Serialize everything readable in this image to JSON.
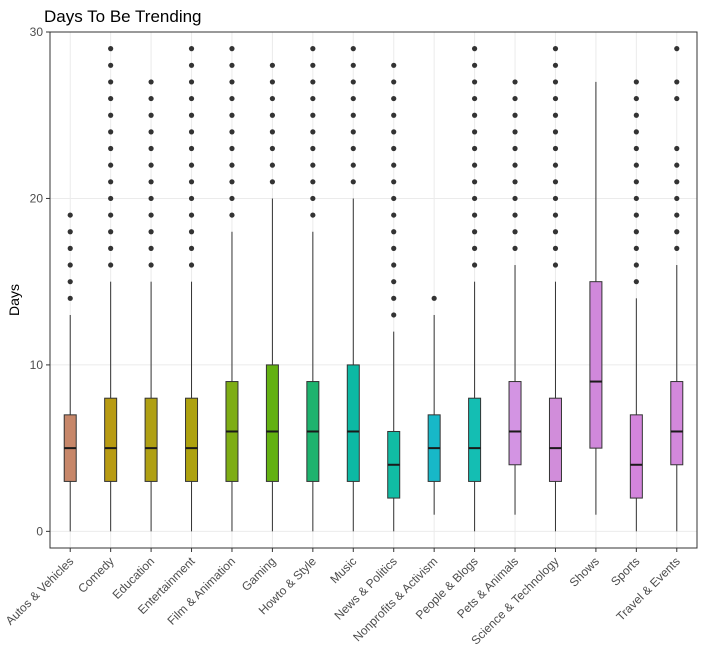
{
  "chart_data": {
    "type": "boxplot",
    "title": "Days To Be Trending",
    "xlabel": "",
    "ylabel": "Days",
    "ylim": [
      -1,
      30
    ],
    "y_ticks": [
      0,
      10,
      20,
      30
    ],
    "grid": true,
    "legend": "none",
    "categories": [
      "Autos & Vehicles",
      "Comedy",
      "Education",
      "Entertainment",
      "Film & Animation",
      "Gaming",
      "Howto & Style",
      "Music",
      "News & Politics",
      "Nonprofits & Activism",
      "People & Blogs",
      "Pets & Animals",
      "Science & Technology",
      "Shows",
      "Sports",
      "Travel & Events"
    ],
    "colors": [
      "#C7876A",
      "#B89B13",
      "#B0A013",
      "#AEA20F",
      "#7EAD14",
      "#63B112",
      "#1EB36E",
      "#0DB9A4",
      "#11BCA4",
      "#17B8C8",
      "#14BEB3",
      "#D394E3",
      "#D18DDA",
      "#D088DB",
      "#D385DC",
      "#D388DC"
    ],
    "boxes": [
      {
        "min": 0,
        "q1": 3,
        "median": 5,
        "q3": 7,
        "max": 13,
        "outliers": [
          14,
          15,
          16,
          17,
          18,
          19
        ]
      },
      {
        "min": 0,
        "q1": 3,
        "median": 5,
        "q3": 8,
        "max": 15,
        "outliers": [
          16,
          17,
          18,
          19,
          20,
          21,
          22,
          23,
          24,
          25,
          26,
          27,
          28,
          29
        ]
      },
      {
        "min": 0,
        "q1": 3,
        "median": 5,
        "q3": 8,
        "max": 15,
        "outliers": [
          16,
          17,
          18,
          19,
          20,
          21,
          22,
          23,
          24,
          25,
          26,
          27
        ]
      },
      {
        "min": 0,
        "q1": 3,
        "median": 5,
        "q3": 8,
        "max": 15,
        "outliers": [
          16,
          17,
          18,
          19,
          20,
          21,
          22,
          23,
          24,
          25,
          26,
          27,
          28,
          29
        ]
      },
      {
        "min": 0,
        "q1": 3,
        "median": 6,
        "q3": 9,
        "max": 18,
        "outliers": [
          19,
          20,
          21,
          22,
          23,
          24,
          25,
          26,
          27,
          28,
          29
        ]
      },
      {
        "min": 0,
        "q1": 3,
        "median": 6,
        "q3": 10,
        "max": 20,
        "outliers": [
          21,
          22,
          23,
          24,
          25,
          26,
          27,
          28
        ]
      },
      {
        "min": 0,
        "q1": 3,
        "median": 6,
        "q3": 9,
        "max": 18,
        "outliers": [
          19,
          20,
          21,
          22,
          23,
          24,
          25,
          26,
          27,
          28,
          29
        ]
      },
      {
        "min": 0,
        "q1": 3,
        "median": 6,
        "q3": 10,
        "max": 20,
        "outliers": [
          21,
          22,
          23,
          24,
          25,
          26,
          27,
          28,
          29
        ]
      },
      {
        "min": 0,
        "q1": 2,
        "median": 4,
        "q3": 6,
        "max": 12,
        "outliers": [
          13,
          14,
          15,
          16,
          17,
          18,
          19,
          20,
          21,
          22,
          23,
          24,
          25,
          26,
          27,
          28
        ]
      },
      {
        "min": 1,
        "q1": 3,
        "median": 5,
        "q3": 7,
        "max": 13,
        "outliers": [
          14
        ]
      },
      {
        "min": 0,
        "q1": 3,
        "median": 5,
        "q3": 8,
        "max": 15,
        "outliers": [
          16,
          17,
          18,
          19,
          20,
          21,
          22,
          23,
          24,
          25,
          26,
          27,
          28,
          29
        ]
      },
      {
        "min": 1,
        "q1": 4,
        "median": 6,
        "q3": 9,
        "max": 16,
        "outliers": [
          17,
          18,
          19,
          20,
          21,
          22,
          23,
          24,
          25,
          26,
          27
        ]
      },
      {
        "min": 0,
        "q1": 3,
        "median": 5,
        "q3": 8,
        "max": 15,
        "outliers": [
          16,
          17,
          18,
          19,
          20,
          21,
          22,
          23,
          24,
          25,
          26,
          27,
          28,
          29
        ]
      },
      {
        "min": 1,
        "q1": 5,
        "median": 9,
        "q3": 15,
        "max": 27,
        "outliers": []
      },
      {
        "min": 0,
        "q1": 2,
        "median": 4,
        "q3": 7,
        "max": 14,
        "outliers": [
          15,
          16,
          17,
          18,
          19,
          20,
          21,
          22,
          23,
          24,
          25,
          26,
          27
        ]
      },
      {
        "min": 0,
        "q1": 4,
        "median": 6,
        "q3": 9,
        "max": 16,
        "outliers": [
          17,
          18,
          19,
          20,
          21,
          22,
          23,
          26,
          27,
          29
        ]
      }
    ]
  }
}
